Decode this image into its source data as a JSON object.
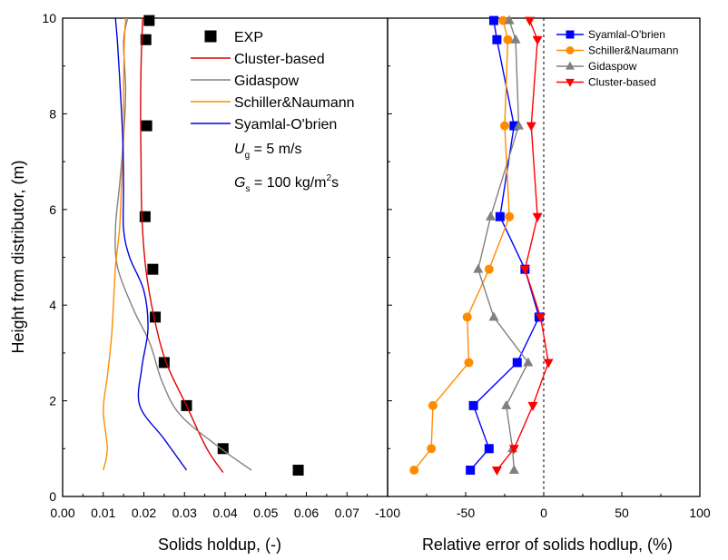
{
  "chart_data": [
    {
      "type": "line",
      "xlabel": "Solids holdup, (-)",
      "ylabel": "Height from distributor, (m)",
      "xlim": [
        0.0,
        0.08
      ],
      "ylim": [
        0,
        10
      ],
      "x_ticks": [
        "0.00",
        "0.01",
        "0.02",
        "0.03",
        "0.04",
        "0.05",
        "0.06",
        "0.07"
      ],
      "y_ticks": [
        "0",
        "2",
        "4",
        "6",
        "8",
        "10"
      ],
      "legend_position": "top-right",
      "annotation": {
        "ug": {
          "sym": "U",
          "sub": "g",
          "text": " = 5 m/s"
        },
        "gs": {
          "sym": "G",
          "sub": "s",
          "text": " = 100 kg/m",
          "sup": "2",
          "tail": "s"
        }
      },
      "series": [
        {
          "name": "EXP",
          "kind": "scatter",
          "color": "#000000",
          "marker": "square",
          "points": [
            [
              0.058,
              0.55
            ],
            [
              0.0395,
              1.0
            ],
            [
              0.0305,
              1.9
            ],
            [
              0.025,
              2.8
            ],
            [
              0.0228,
              3.75
            ],
            [
              0.0222,
              4.75
            ],
            [
              0.0203,
              5.85
            ],
            [
              0.0207,
              7.75
            ],
            [
              0.0205,
              9.55
            ],
            [
              0.0213,
              9.95
            ]
          ]
        },
        {
          "name": "Cluster-based",
          "kind": "line",
          "color": "#e00000",
          "points": [
            [
              0.0395,
              0.5
            ],
            [
              0.0355,
              1.0
            ],
            [
              0.0305,
              1.9
            ],
            [
              0.0255,
              2.8
            ],
            [
              0.0225,
              3.75
            ],
            [
              0.0205,
              4.75
            ],
            [
              0.0195,
              5.85
            ],
            [
              0.0193,
              7.0
            ],
            [
              0.0192,
              8.0
            ],
            [
              0.0193,
              9.0
            ],
            [
              0.0197,
              10.0
            ]
          ]
        },
        {
          "name": "Gidaspow",
          "kind": "line",
          "color": "#808080",
          "points": [
            [
              0.0465,
              0.55
            ],
            [
              0.039,
              1.0
            ],
            [
              0.029,
              1.7
            ],
            [
              0.0245,
              2.4
            ],
            [
              0.0215,
              3.2
            ],
            [
              0.0175,
              3.9
            ],
            [
              0.0135,
              4.8
            ],
            [
              0.013,
              5.6
            ],
            [
              0.014,
              6.5
            ],
            [
              0.015,
              7.5
            ],
            [
              0.0155,
              8.5
            ],
            [
              0.015,
              9.5
            ],
            [
              0.016,
              10.0
            ]
          ]
        },
        {
          "name": "Schiller&Naumann",
          "kind": "line",
          "color": "#ff8c00",
          "points": [
            [
              0.01,
              0.55
            ],
            [
              0.011,
              1.0
            ],
            [
              0.01,
              1.8
            ],
            [
              0.011,
              2.5
            ],
            [
              0.012,
              3.3
            ],
            [
              0.0125,
              4.0
            ],
            [
              0.013,
              4.8
            ],
            [
              0.014,
              5.6
            ],
            [
              0.0145,
              6.5
            ],
            [
              0.015,
              7.5
            ],
            [
              0.015,
              8.5
            ],
            [
              0.0152,
              9.5
            ],
            [
              0.0155,
              10.0
            ]
          ]
        },
        {
          "name": "Syamlal-O'brien",
          "kind": "line",
          "color": "#0000e0",
          "points": [
            [
              0.0305,
              0.55
            ],
            [
              0.025,
              1.2
            ],
            [
              0.019,
              1.9
            ],
            [
              0.0195,
              2.7
            ],
            [
              0.021,
              3.5
            ],
            [
              0.02,
              4.3
            ],
            [
              0.0165,
              5.0
            ],
            [
              0.015,
              5.6
            ],
            [
              0.015,
              6.5
            ],
            [
              0.0148,
              7.5
            ],
            [
              0.0142,
              8.5
            ],
            [
              0.0135,
              9.5
            ],
            [
              0.013,
              10.0
            ]
          ]
        }
      ]
    },
    {
      "type": "line",
      "xlabel": "Relative error of solids hodlup, (%)",
      "ylabel": "",
      "xlim": [
        -100,
        100
      ],
      "ylim": [
        0,
        10
      ],
      "x_ticks": [
        "-100",
        "-50",
        "0",
        "50",
        "100"
      ],
      "legend_position": "top-right",
      "reference_line_x": 0,
      "series": [
        {
          "name": "Syamlal-O'brien",
          "color": "#0000ff",
          "marker": "square",
          "points": [
            [
              -47,
              0.55
            ],
            [
              -35,
              1.0
            ],
            [
              -45,
              1.9
            ],
            [
              -17,
              2.8
            ],
            [
              -3,
              3.75
            ],
            [
              -12,
              4.75
            ],
            [
              -28,
              5.85
            ],
            [
              -19,
              7.75
            ],
            [
              -30,
              9.55
            ],
            [
              -32,
              9.95
            ]
          ]
        },
        {
          "name": "Schiller&Naumann",
          "color": "#ff8c00",
          "marker": "circle",
          "points": [
            [
              -83,
              0.55
            ],
            [
              -72,
              1.0
            ],
            [
              -71,
              1.9
            ],
            [
              -48,
              2.8
            ],
            [
              -49,
              3.75
            ],
            [
              -35,
              4.75
            ],
            [
              -22,
              5.85
            ],
            [
              -25,
              7.75
            ],
            [
              -23,
              9.55
            ],
            [
              -26,
              9.95
            ]
          ]
        },
        {
          "name": "Gidaspow",
          "color": "#808080",
          "marker": "triangle-up",
          "points": [
            [
              -19,
              0.55
            ],
            [
              -20,
              1.0
            ],
            [
              -24,
              1.9
            ],
            [
              -10,
              2.8
            ],
            [
              -32,
              3.75
            ],
            [
              -42,
              4.75
            ],
            [
              -34,
              5.85
            ],
            [
              -16,
              7.75
            ],
            [
              -18,
              9.55
            ],
            [
              -22,
              9.95
            ]
          ]
        },
        {
          "name": "Cluster-based",
          "color": "#ff0000",
          "marker": "triangle-down",
          "points": [
            [
              -30,
              0.55
            ],
            [
              -19,
              1.0
            ],
            [
              -7,
              1.9
            ],
            [
              3,
              2.8
            ],
            [
              -2,
              3.75
            ],
            [
              -12,
              4.75
            ],
            [
              -4,
              5.85
            ],
            [
              -8,
              7.75
            ],
            [
              -4,
              9.55
            ],
            [
              -9,
              9.95
            ]
          ]
        }
      ]
    }
  ]
}
